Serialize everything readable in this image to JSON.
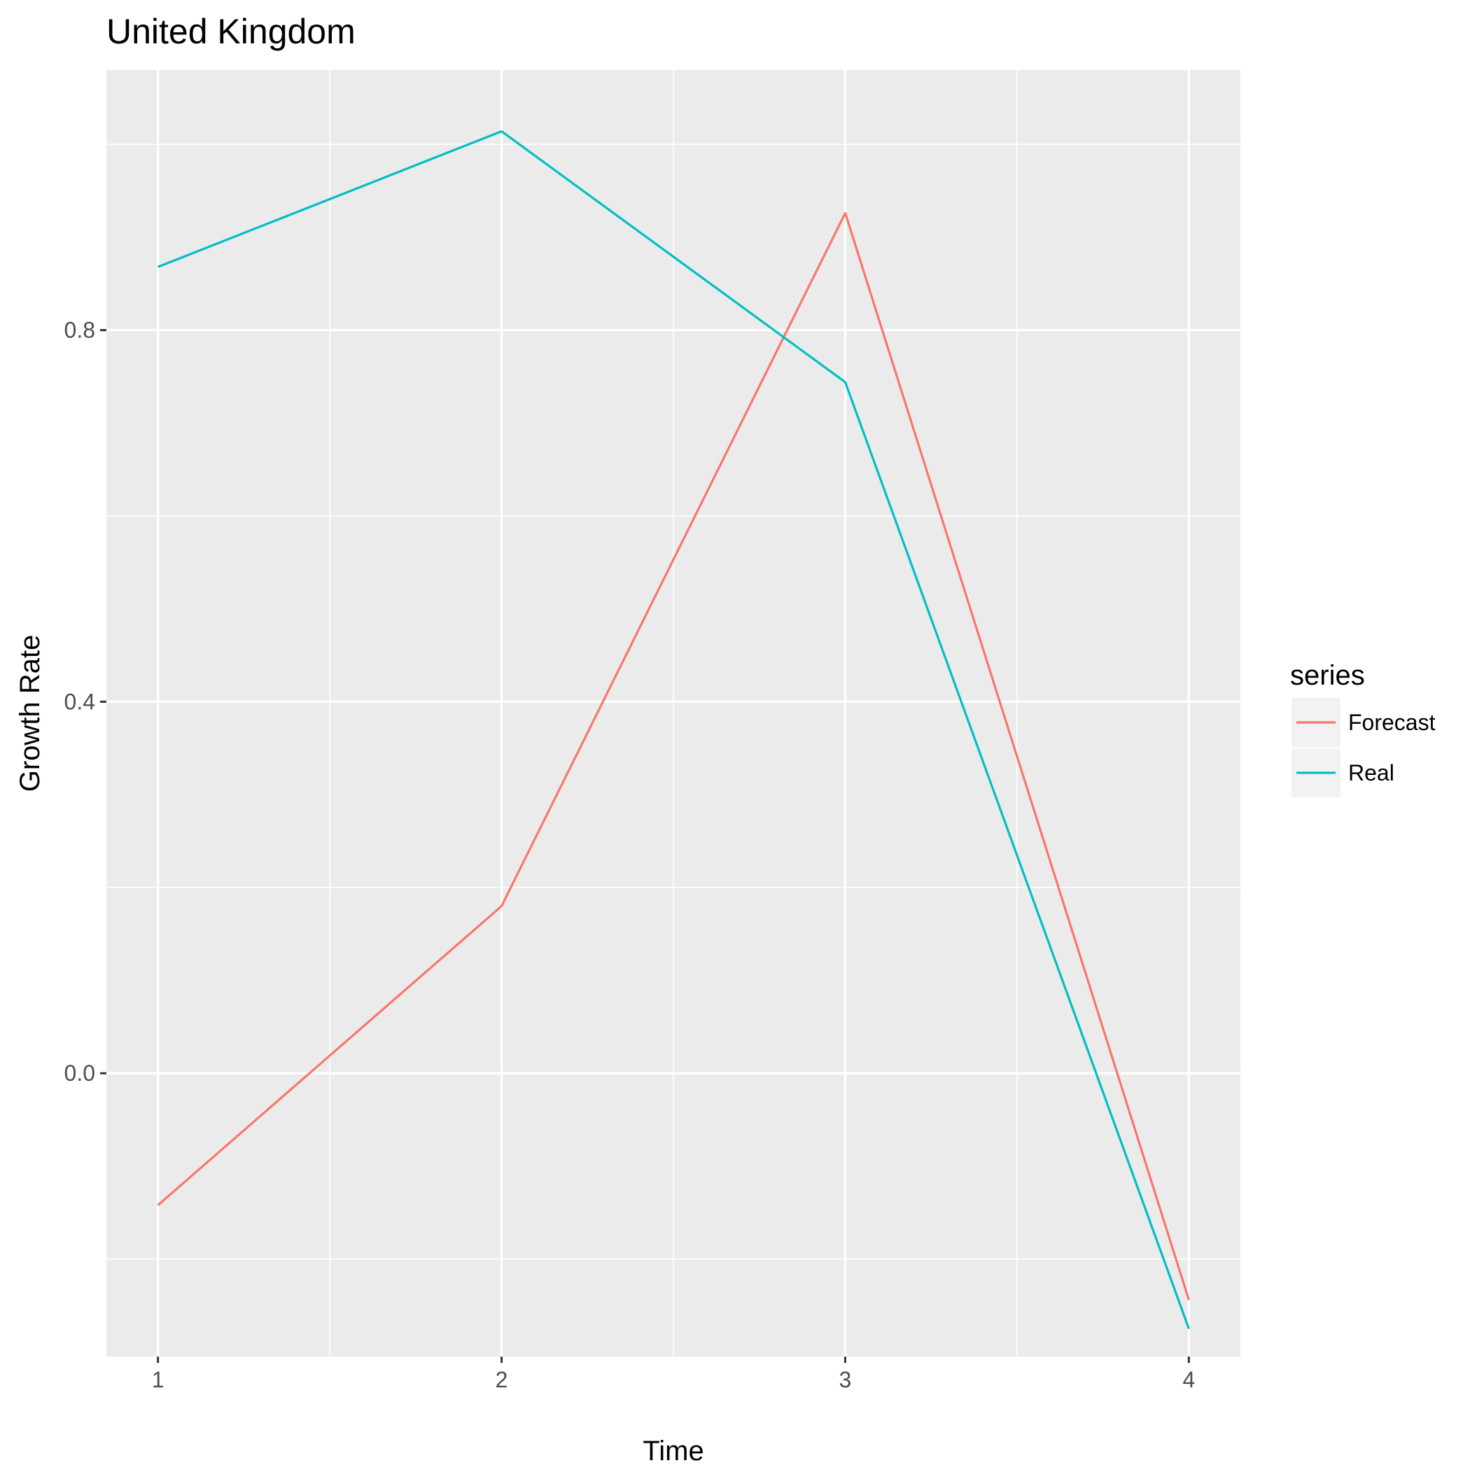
{
  "chart_data": {
    "type": "line",
    "title": "United Kingdom",
    "xlabel": "Time",
    "ylabel": "Growth Rate",
    "x": [
      1,
      2,
      3,
      4
    ],
    "xlim": [
      0.85,
      4.15
    ],
    "ylim": [
      -0.305,
      1.08
    ],
    "x_ticks": [
      1,
      2,
      3,
      4
    ],
    "x_tick_labels": [
      "1",
      "2",
      "3",
      "4"
    ],
    "y_ticks": [
      0.0,
      0.4,
      0.8
    ],
    "y_tick_labels": [
      "0.0",
      "0.4",
      "0.8"
    ],
    "y_minor_ticks": [
      -0.2,
      0.2,
      0.6,
      1.0
    ],
    "x_minor_ticks": [
      1.5,
      2.5,
      3.5
    ],
    "grid": true,
    "legend": {
      "title": "series",
      "placement": "right"
    },
    "series": [
      {
        "name": "Forecast",
        "color": "#F8766D",
        "values": [
          -0.142,
          0.18,
          0.926,
          -0.244
        ]
      },
      {
        "name": "Real",
        "color": "#00BFC4",
        "values": [
          0.868,
          1.014,
          0.744,
          -0.275
        ]
      }
    ],
    "colors": {
      "panel": "#EBEBEB",
      "grid": "#FFFFFF",
      "tick": "#333333",
      "legend_key": "#F2F2F2"
    }
  }
}
